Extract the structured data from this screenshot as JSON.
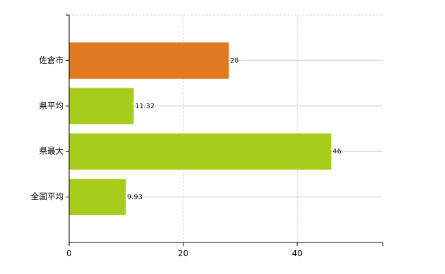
{
  "chart_data": {
    "type": "bar",
    "orientation": "horizontal",
    "title": "",
    "xlabel": "",
    "ylabel": "",
    "categories": [
      "佐倉市",
      "県平均",
      "県最大",
      "全国平均"
    ],
    "values": [
      28,
      11.32,
      46,
      9.93
    ],
    "value_labels": [
      "28",
      "11.32",
      "46",
      "9.93"
    ],
    "bar_colors": [
      "#E07A20",
      "#A8CC1C",
      "#A8CC1C",
      "#A8CC1C"
    ],
    "xlim": [
      0,
      55
    ],
    "x_ticks": [
      0,
      20,
      40
    ],
    "x_tick_labels": [
      "0",
      "20",
      "40"
    ],
    "grid": true,
    "legend": "none"
  }
}
